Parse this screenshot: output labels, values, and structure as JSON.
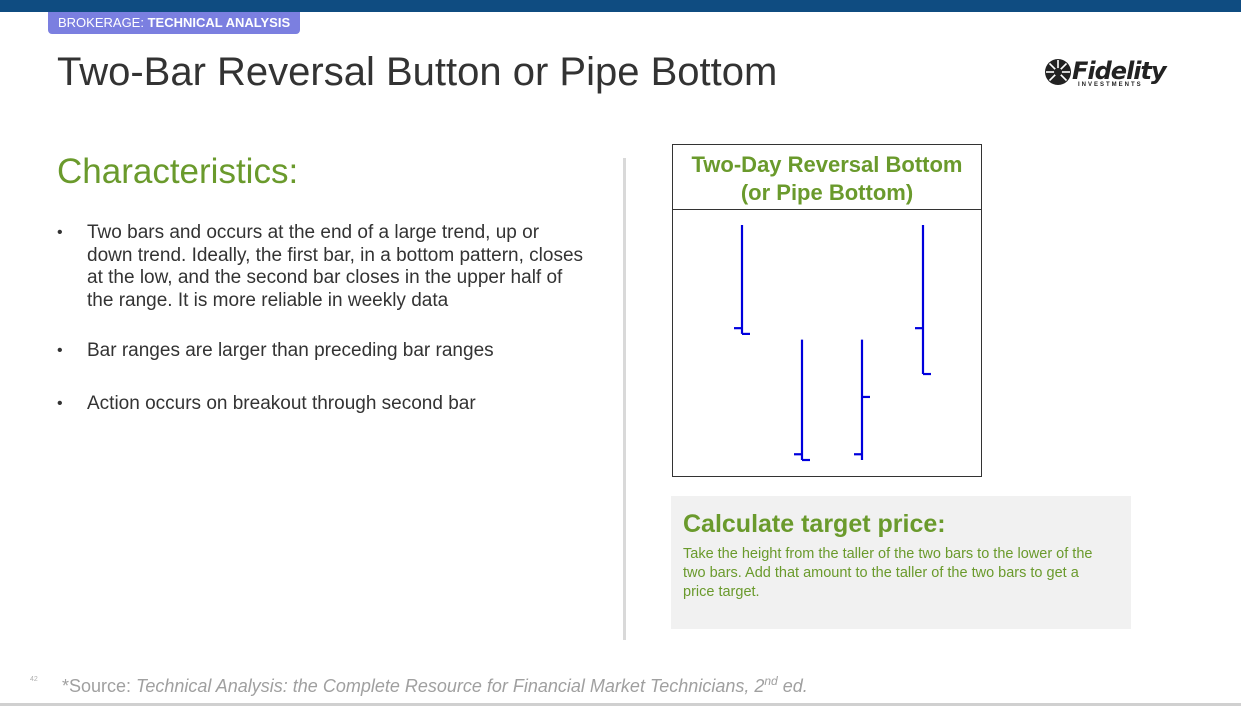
{
  "header": {
    "breadcrumb_prefix": "BROKERAGE: ",
    "breadcrumb_section": "TECHNICAL ANALYSIS",
    "title": "Two-Bar Reversal Button or Pipe Bottom",
    "logo_text": "Fidelity",
    "logo_subtext": "INVESTMENTS",
    "logo_icon": "fidelity-burst-icon",
    "bar_color": "#0f4c81",
    "breadcrumb_color": "#7b7fe0"
  },
  "left": {
    "heading": "Characteristics:",
    "bullets": [
      "Two bars and occurs at the end of a large trend, up or down trend. Ideally, the first bar, in a bottom pattern, closes at the low, and the second bar closes in the upper half of the range. It is more reliable in weekly data",
      "Bar ranges are larger than preceding bar ranges",
      "Action occurs on breakout through second bar"
    ]
  },
  "diagram": {
    "title_line1": "Two-Day Reversal Bottom",
    "title_line2": "(or Pipe Bottom)",
    "bar_color": "#0000dd",
    "bars": [
      {
        "high": 100,
        "low": 81,
        "open": 82,
        "close": 81
      },
      {
        "high": 80,
        "low": 59,
        "open": 60,
        "close": 59
      },
      {
        "high": 80,
        "low": 59,
        "open": 60,
        "close": 70
      },
      {
        "high": 100,
        "low": 74,
        "open": 82,
        "close": 74
      }
    ]
  },
  "callout": {
    "title": "Calculate target price:",
    "body": "Take the height from the taller of the two bars to the lower of the two bars. Add that amount to the taller of the two bars to get a price target.",
    "accent_color": "#6a9a2c"
  },
  "footer": {
    "page_number": "42",
    "source_prefix": "*Source: ",
    "source_title": "Technical Analysis: the Complete Resource for Financial Market Technicians, 2",
    "source_sup": "nd",
    "source_suffix": " ed."
  }
}
